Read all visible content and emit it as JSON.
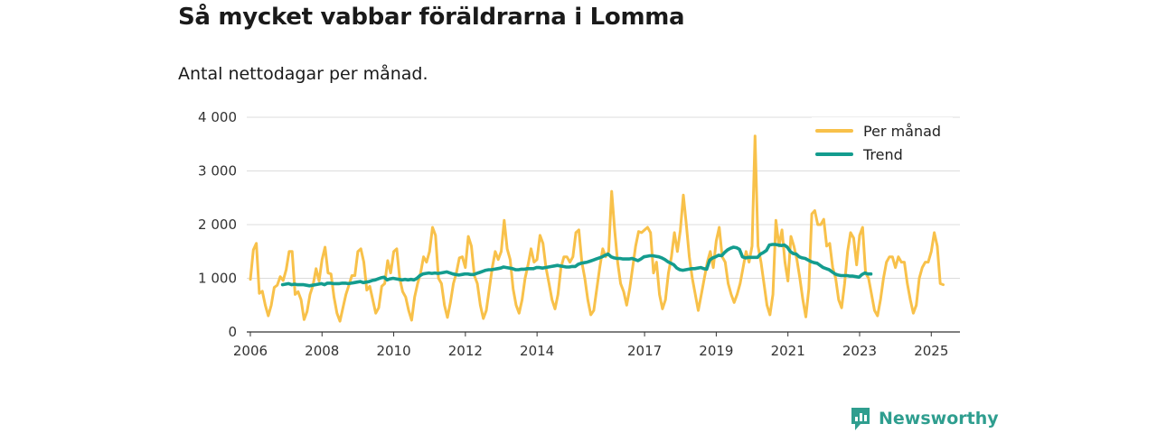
{
  "title": "Så mycket vabbar föräldrarna i Lomma",
  "subtitle": "Antal nettodagar per månad.",
  "brand": {
    "name": "Newsworthy",
    "icon": "newsworthy-logo-icon",
    "color": "#2f9e8f"
  },
  "chart_data": {
    "type": "line",
    "title": "Så mycket vabbar föräldrarna i Lomma",
    "subtitle": "Antal nettodagar per månad.",
    "xlabel": "",
    "ylabel": "",
    "xlim": [
      2005.9,
      2025.8
    ],
    "ylim": [
      0,
      4000
    ],
    "grid": true,
    "legend_position": "top-right",
    "x_ticks": [
      2006,
      2008,
      2010,
      2012,
      2014,
      2017,
      2019,
      2021,
      2023,
      2025
    ],
    "x_tick_labels": [
      "2006",
      "2008",
      "2010",
      "2012",
      "2014",
      "2017",
      "2019",
      "2021",
      "2023",
      "2025"
    ],
    "y_ticks": [
      0,
      1000,
      2000,
      3000,
      4000
    ],
    "y_tick_labels": [
      "0",
      "1 000",
      "2 000",
      "3 000",
      "4 000"
    ],
    "series": [
      {
        "name": "Per månad",
        "color": "#f8c14a",
        "x_start": 2006.0,
        "x_step": 0.08333,
        "values": [
          980,
          1530,
          1650,
          720,
          760,
          500,
          300,
          500,
          830,
          870,
          1030,
          960,
          1160,
          1500,
          1500,
          700,
          750,
          600,
          230,
          380,
          700,
          870,
          1180,
          950,
          1350,
          1580,
          1100,
          1080,
          650,
          350,
          200,
          450,
          700,
          870,
          1050,
          1050,
          1500,
          1550,
          1300,
          780,
          850,
          600,
          350,
          450,
          850,
          900,
          1330,
          1100,
          1500,
          1550,
          1000,
          750,
          650,
          400,
          220,
          650,
          900,
          1100,
          1400,
          1300,
          1500,
          1950,
          1800,
          1000,
          900,
          500,
          270,
          550,
          900,
          1100,
          1380,
          1400,
          1200,
          1780,
          1600,
          1050,
          900,
          500,
          250,
          400,
          800,
          1200,
          1500,
          1350,
          1500,
          2080,
          1550,
          1350,
          800,
          500,
          350,
          600,
          1000,
          1250,
          1550,
          1300,
          1350,
          1800,
          1650,
          1200,
          900,
          600,
          430,
          700,
          1200,
          1400,
          1400,
          1300,
          1400,
          1850,
          1900,
          1300,
          1000,
          600,
          320,
          400,
          800,
          1200,
          1550,
          1400,
          1500,
          2620,
          1900,
          1300,
          900,
          750,
          500,
          800,
          1200,
          1600,
          1870,
          1850,
          1900,
          1950,
          1850,
          1100,
          1300,
          700,
          430,
          600,
          1100,
          1400,
          1850,
          1500,
          1900,
          2550,
          2000,
          1400,
          1000,
          700,
          400,
          700,
          1000,
          1300,
          1500,
          1200,
          1700,
          1950,
          1400,
          1300,
          900,
          700,
          550,
          700,
          900,
          1200,
          1500,
          1300,
          1600,
          3650,
          1600,
          1300,
          900,
          500,
          320,
          700,
          2080,
          1600,
          1900,
          1300,
          950,
          1780,
          1600,
          1350,
          1000,
          600,
          280,
          800,
          2200,
          2260,
          2000,
          2000,
          2100,
          1600,
          1650,
          1200,
          1000,
          600,
          450,
          900,
          1500,
          1850,
          1750,
          1250,
          1800,
          1950,
          1100,
          1000,
          700,
          400,
          300,
          600,
          1000,
          1300,
          1400,
          1400,
          1200,
          1400,
          1300,
          1300,
          900,
          600,
          350,
          500,
          1000,
          1200,
          1300,
          1300,
          1500,
          1850,
          1600,
          900,
          880
        ]
      },
      {
        "name": "Trend",
        "color": "#139c8e",
        "x_start": 2006.9,
        "x_step": 0.08333,
        "values": [
          880,
          890,
          900,
          880,
          890,
          880,
          880,
          880,
          870,
          860,
          870,
          880,
          890,
          900,
          880,
          910,
          910,
          900,
          900,
          900,
          910,
          910,
          900,
          910,
          920,
          930,
          940,
          920,
          930,
          940,
          960,
          970,
          990,
          1010,
          1020,
          970,
          990,
          1000,
          990,
          980,
          970,
          980,
          970,
          980,
          970,
          1000,
          1050,
          1080,
          1090,
          1100,
          1090,
          1100,
          1090,
          1100,
          1110,
          1120,
          1100,
          1080,
          1070,
          1060,
          1070,
          1080,
          1080,
          1070,
          1070,
          1090,
          1110,
          1130,
          1150,
          1160,
          1160,
          1170,
          1180,
          1190,
          1210,
          1200,
          1190,
          1180,
          1160,
          1160,
          1170,
          1170,
          1180,
          1180,
          1180,
          1200,
          1200,
          1190,
          1200,
          1210,
          1220,
          1230,
          1240,
          1230,
          1220,
          1210,
          1210,
          1220,
          1220,
          1260,
          1280,
          1290,
          1300,
          1320,
          1340,
          1360,
          1380,
          1400,
          1430,
          1450,
          1400,
          1380,
          1370,
          1370,
          1360,
          1360,
          1360,
          1370,
          1350,
          1330,
          1360,
          1400,
          1410,
          1420,
          1420,
          1410,
          1400,
          1380,
          1350,
          1310,
          1280,
          1250,
          1190,
          1160,
          1150,
          1160,
          1170,
          1180,
          1180,
          1190,
          1200,
          1180,
          1170,
          1340,
          1380,
          1400,
          1430,
          1420,
          1480,
          1530,
          1560,
          1580,
          1570,
          1540,
          1400,
          1380,
          1390,
          1390,
          1390,
          1390,
          1450,
          1480,
          1520,
          1620,
          1630,
          1630,
          1620,
          1610,
          1620,
          1580,
          1500,
          1460,
          1450,
          1400,
          1380,
          1370,
          1340,
          1310,
          1290,
          1280,
          1240,
          1200,
          1180,
          1160,
          1120,
          1080,
          1060,
          1050,
          1050,
          1050,
          1040,
          1040,
          1030,
          1020,
          1070,
          1100,
          1080,
          1080
        ]
      }
    ]
  }
}
